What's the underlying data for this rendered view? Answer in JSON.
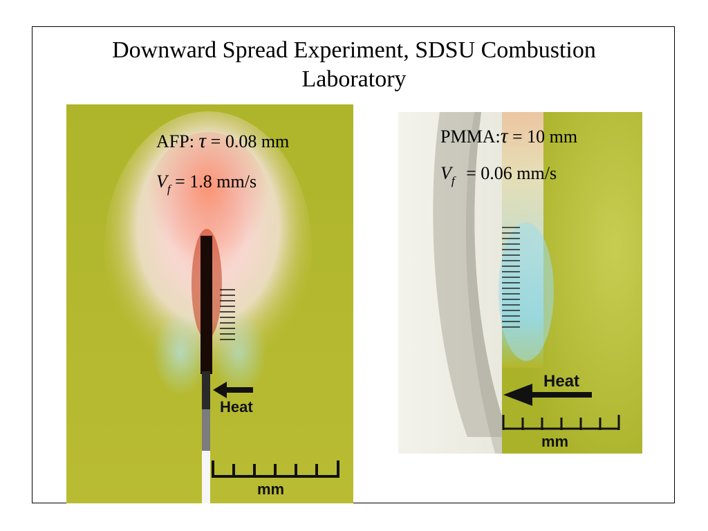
{
  "slide": {
    "title_line1": "Downward Spread Experiment, SDSU Combustion",
    "title_line2": "Laboratory"
  },
  "left_panel": {
    "material_label": "AFP:",
    "tau_symbol": "τ",
    "tau_value": "= 0.08 mm",
    "vf_symbol": "V",
    "vf_subscript": "f",
    "vf_value": "= 1.8 mm/s",
    "heat_label": "Heat",
    "scale_label": "mm"
  },
  "right_panel": {
    "material_label": "PMMA:",
    "tau_symbol": "τ",
    "tau_value": "= 10 mm",
    "vf_symbol": "V",
    "vf_subscript": "f",
    "vf_value": "= 0.06 mm/s",
    "heat_label": "Heat",
    "scale_label": "mm"
  },
  "colors": {
    "background_green": "#b5b82a",
    "flame_pink": "#f4c9c4",
    "flame_blue": "#a9dfe6",
    "char_black": "#1a0a05"
  }
}
